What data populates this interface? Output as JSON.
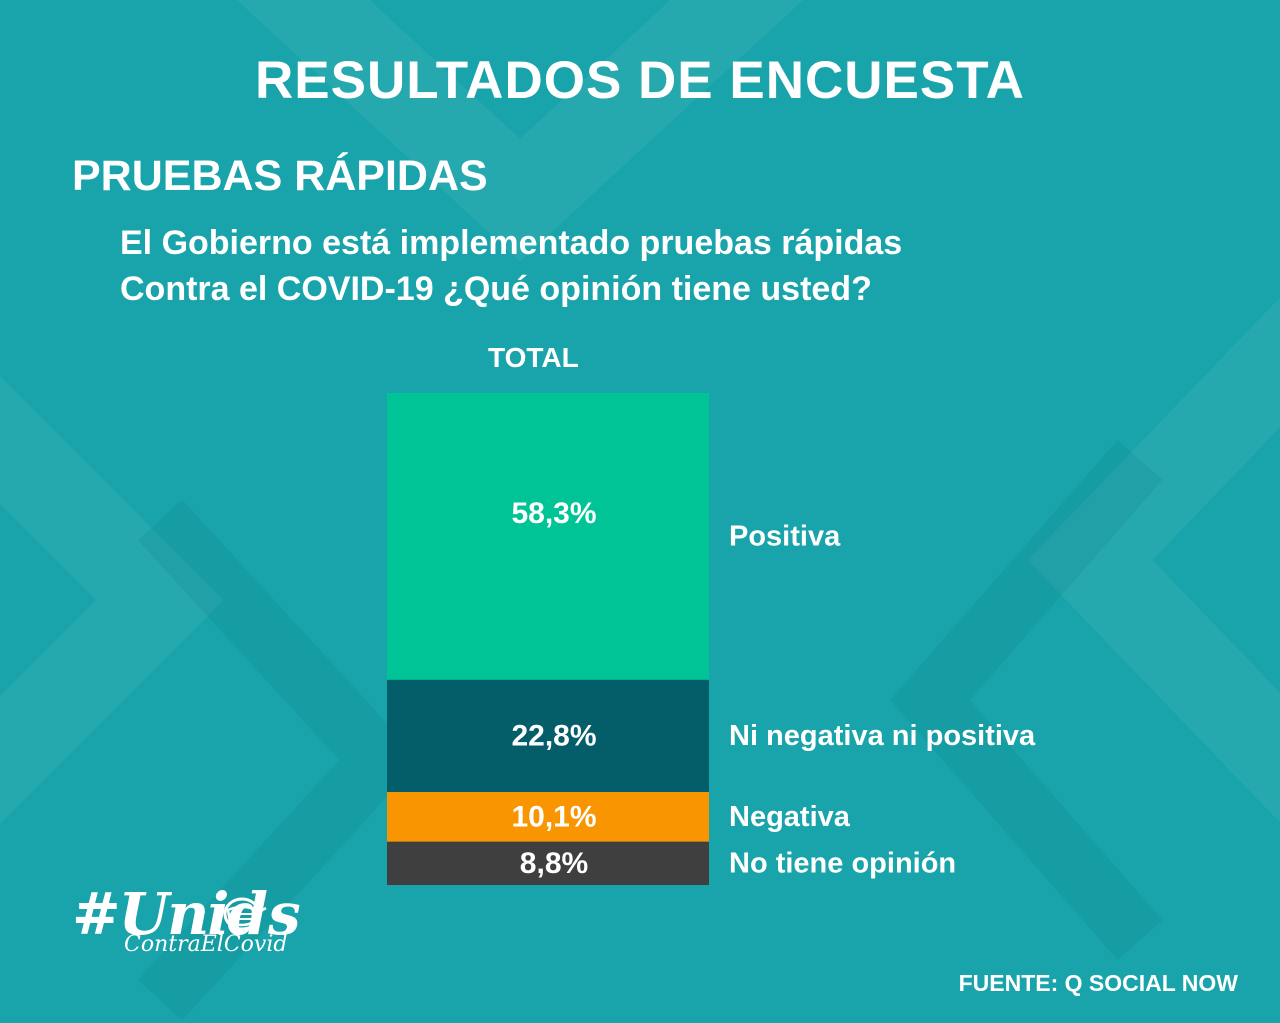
{
  "header": {
    "title": "RESULTADOS DE ENCUESTA",
    "subtitle": "PRUEBAS RÁPIDAS",
    "question_line1": "El Gobierno está implementado pruebas rápidas",
    "question_line2": "Contra el COVID-19 ¿Qué opinión tiene usted?"
  },
  "chart_data": {
    "type": "bar",
    "stacked": true,
    "categories": [
      "TOTAL"
    ],
    "series": [
      {
        "name": "Positiva",
        "values": [
          58.3
        ],
        "label": "58,3%",
        "color": "#00c496"
      },
      {
        "name": "Ni negativa ni positiva",
        "values": [
          22.8
        ],
        "label": "22,8%",
        "color": "#035e6a"
      },
      {
        "name": "Negativa",
        "values": [
          10.1
        ],
        "label": "10,1%",
        "color": "#f99500"
      },
      {
        "name": "No tiene opinión",
        "values": [
          8.8
        ],
        "label": "8,8%",
        "color": "#3f3f3f"
      }
    ],
    "total": 100,
    "legend": "right"
  },
  "logo": {
    "hashtag_part1": "#Unid",
    "hashtag_part2": "s",
    "hashtag_sub": "ContraElCovid",
    "icon": "face-mask-icon"
  },
  "footer": {
    "source": "FUENTE: Q SOCIAL NOW"
  },
  "colors": {
    "background": "#19a3aa",
    "text": "#ffffff"
  }
}
